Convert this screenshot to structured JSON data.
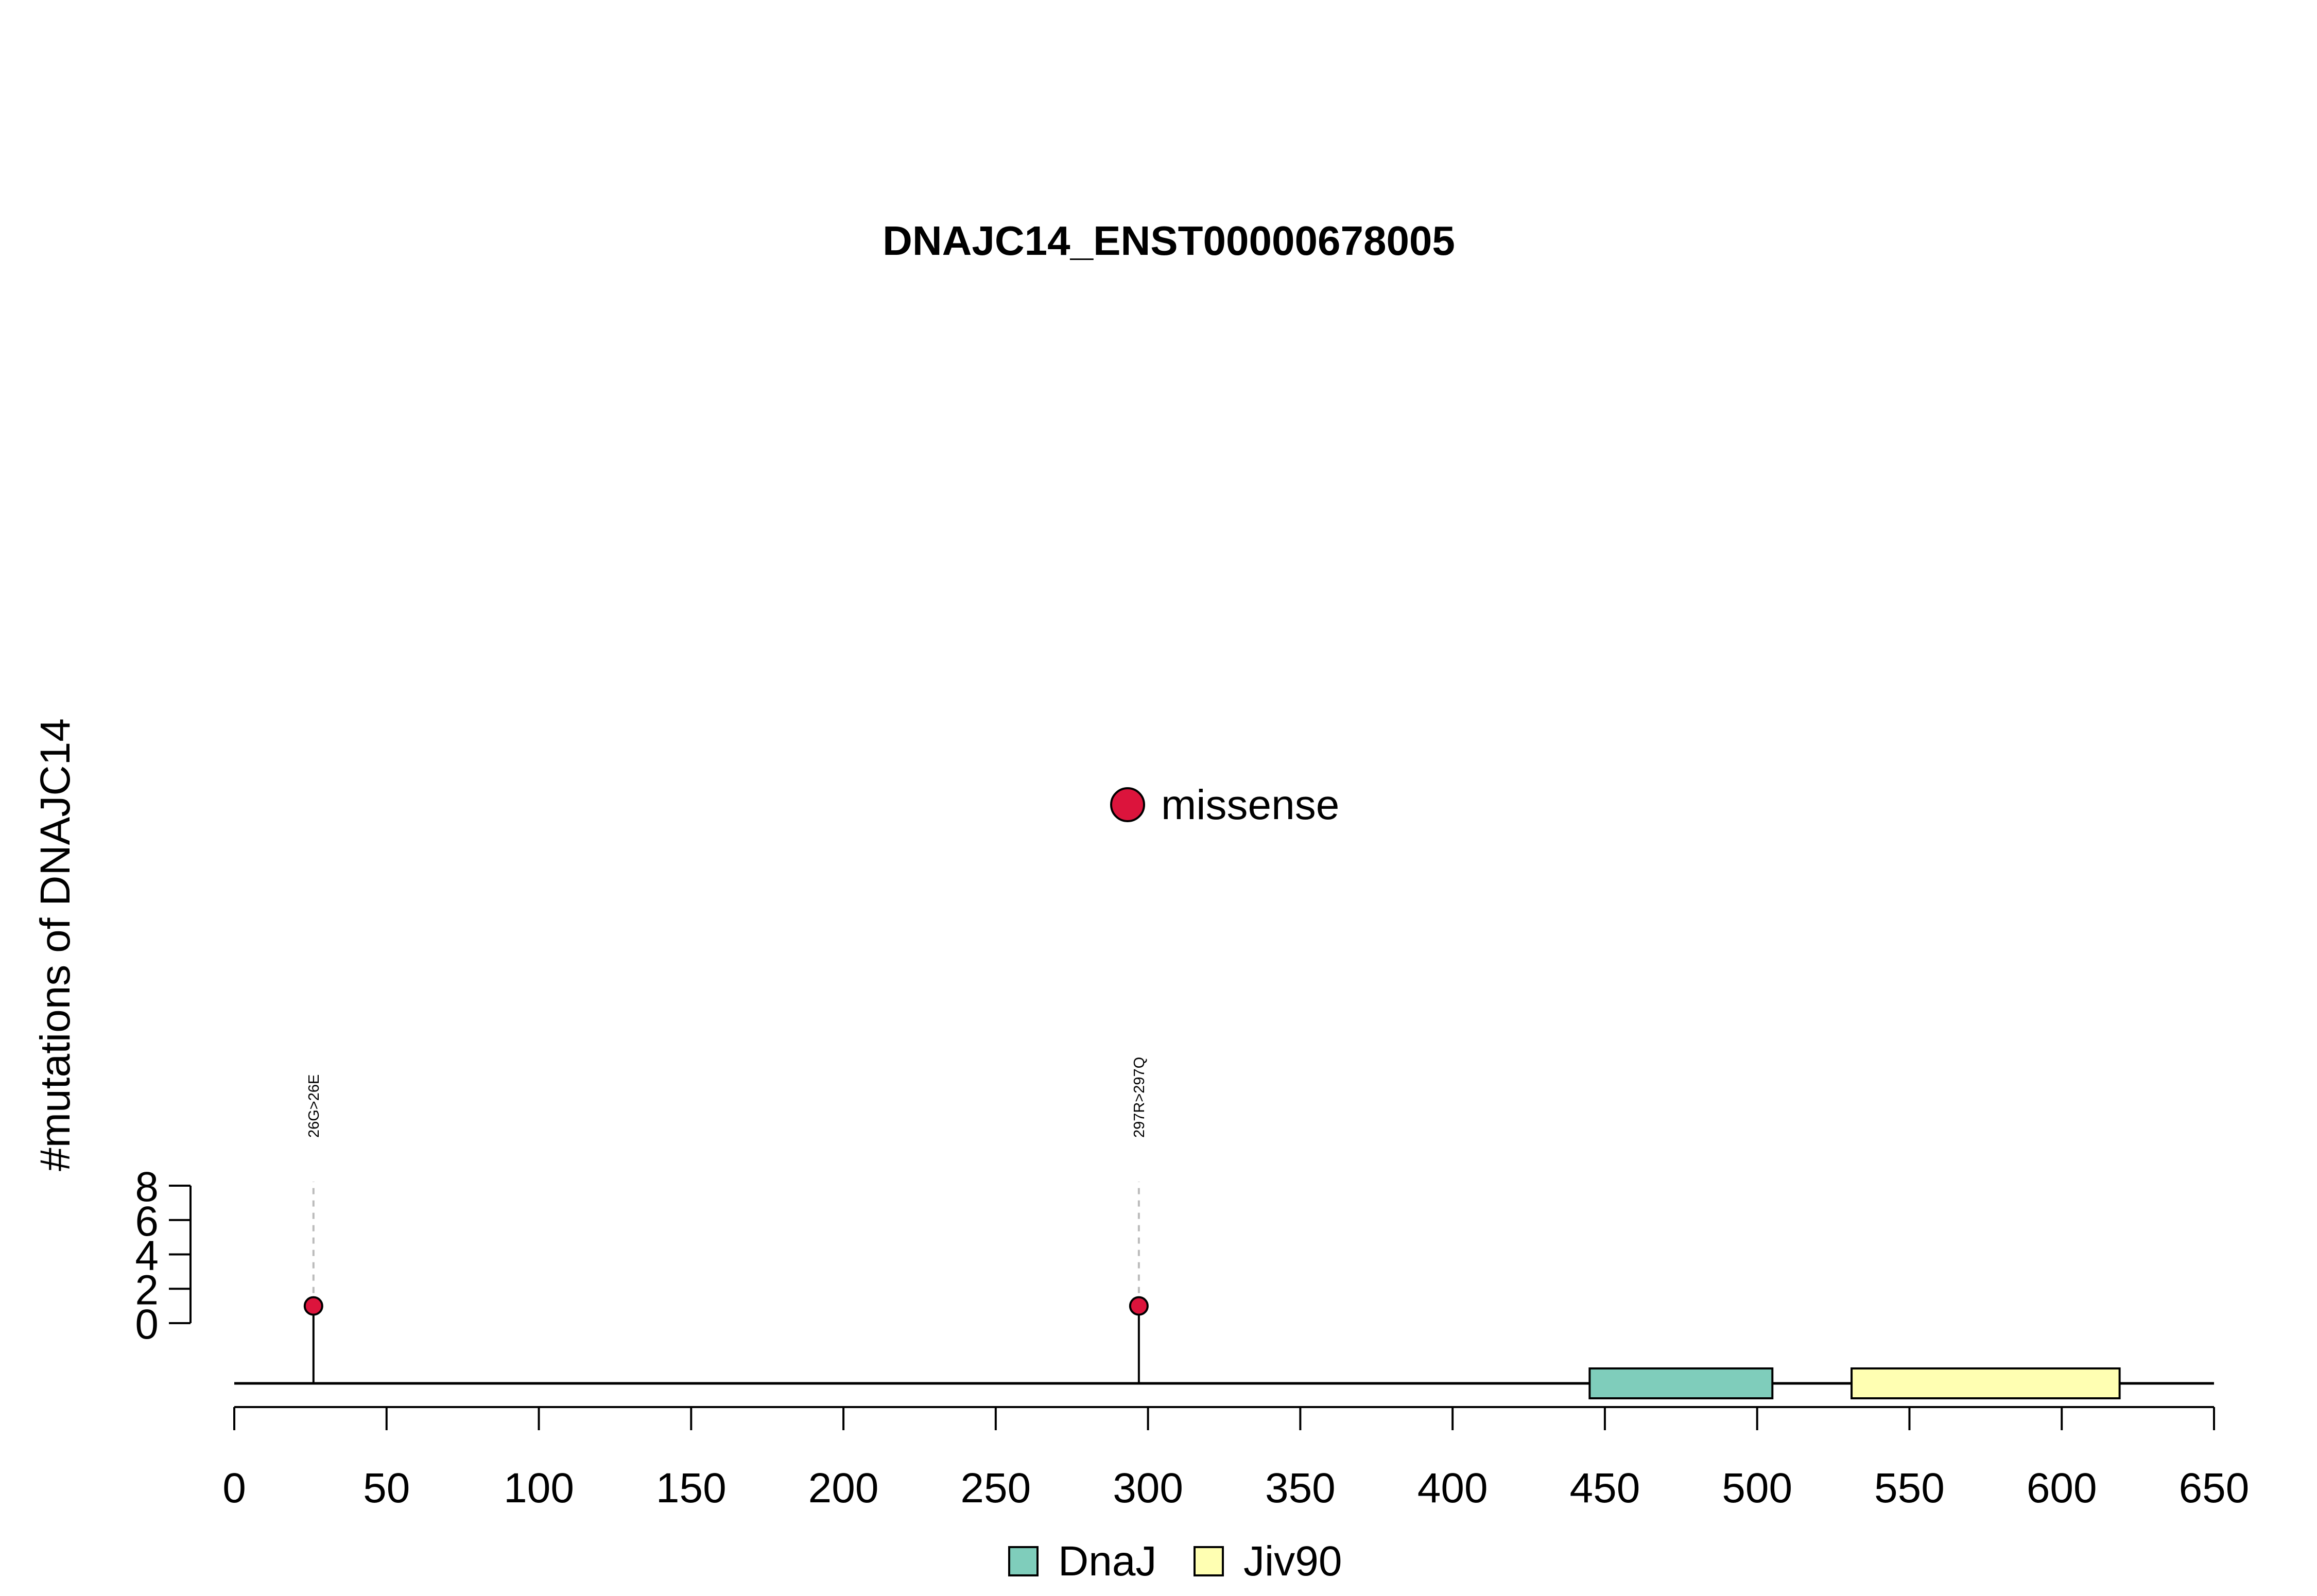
{
  "chart_data": {
    "type": "lollipop",
    "title": "DNAJC14_ENST00000678005",
    "ylabel": "#mutations of DNAJC14",
    "xlabel": "",
    "xlim": [
      0,
      650
    ],
    "ylim": [
      0,
      8
    ],
    "x_ticks": [
      0,
      50,
      100,
      150,
      200,
      250,
      300,
      350,
      400,
      450,
      500,
      550,
      600,
      650
    ],
    "y_ticks": [
      0,
      2,
      4,
      6,
      8
    ],
    "mutations": [
      {
        "position": 26,
        "count": 1,
        "label": "26G>26E",
        "type": "missense"
      },
      {
        "position": 297,
        "count": 1,
        "label": "297R>297Q",
        "type": "missense"
      }
    ],
    "domains": [
      {
        "name": "DnaJ",
        "start": 445,
        "end": 505,
        "color": "#7fcdbb"
      },
      {
        "name": "Jiv90",
        "start": 531,
        "end": 619,
        "color": "#ffffb2"
      }
    ],
    "mutation_legend": [
      {
        "name": "missense",
        "color": "#dc143c"
      }
    ],
    "domain_legend": [
      {
        "name": "DnaJ",
        "color": "#7fcdbb"
      },
      {
        "name": "Jiv90",
        "color": "#ffffb2"
      }
    ]
  }
}
